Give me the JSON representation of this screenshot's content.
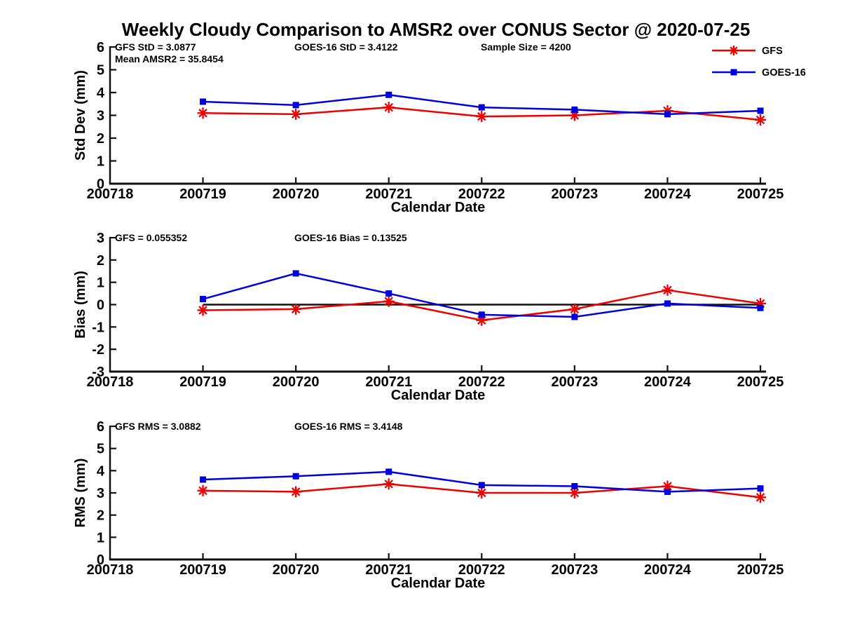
{
  "title": "Weekly Cloudy Comparison to AMSR2 over CONUS Sector @ 2020-07-25",
  "colors": {
    "gfs": "#ee0000",
    "goes": "#0000dd",
    "axis": "#111111",
    "zero_line": "#111111"
  },
  "legend": {
    "position": "top-right",
    "entries": [
      {
        "label": "GFS",
        "color_key": "gfs",
        "marker": "asterisk"
      },
      {
        "label": "GOES-16",
        "color_key": "goes",
        "marker": "square"
      }
    ]
  },
  "chart_data": [
    {
      "id": "stddev",
      "type": "line",
      "ylabel": "Std Dev (mm)",
      "xlabel": "Calendar Date",
      "ylim": [
        0,
        6
      ],
      "yticks": [
        0,
        1,
        2,
        3,
        4,
        5,
        6
      ],
      "grid": false,
      "categories": [
        "200718",
        "200719",
        "200720",
        "200721",
        "200722",
        "200723",
        "200724",
        "200725"
      ],
      "data_start_index": 1,
      "zero_line": false,
      "annotations": [
        {
          "text": "GFS StD = 3.0877",
          "slot": "left"
        },
        {
          "text": "Mean AMSR2 = 35.8454",
          "slot": "left2"
        },
        {
          "text": "GOES-16 StD = 3.4122",
          "slot": "mid"
        },
        {
          "text": "Sample Size = 4200",
          "slot": "right"
        }
      ],
      "series": [
        {
          "name": "GFS",
          "color_key": "gfs",
          "marker": "asterisk",
          "values": [
            3.1,
            3.05,
            3.35,
            2.95,
            3.0,
            3.2,
            2.8
          ]
        },
        {
          "name": "GOES-16",
          "color_key": "goes",
          "marker": "square",
          "values": [
            3.6,
            3.45,
            3.9,
            3.35,
            3.25,
            3.05,
            3.2
          ]
        }
      ]
    },
    {
      "id": "bias",
      "type": "line",
      "ylabel": "Bias (mm)",
      "xlabel": "Calendar Date",
      "ylim": [
        -3,
        3
      ],
      "yticks": [
        -3,
        -2,
        -1,
        0,
        1,
        2,
        3
      ],
      "grid": false,
      "categories": [
        "200718",
        "200719",
        "200720",
        "200721",
        "200722",
        "200723",
        "200724",
        "200725"
      ],
      "data_start_index": 1,
      "zero_line": true,
      "annotations": [
        {
          "text": "GFS = 0.055352",
          "slot": "left"
        },
        {
          "text": "GOES-16 Bias  = 0.13525",
          "slot": "mid"
        }
      ],
      "series": [
        {
          "name": "GFS",
          "color_key": "gfs",
          "marker": "asterisk",
          "values": [
            -0.25,
            -0.2,
            0.15,
            -0.7,
            -0.2,
            0.65,
            0.05
          ]
        },
        {
          "name": "GOES-16",
          "color_key": "goes",
          "marker": "square",
          "values": [
            0.25,
            1.4,
            0.5,
            -0.45,
            -0.55,
            0.05,
            -0.15
          ]
        }
      ]
    },
    {
      "id": "rms",
      "type": "line",
      "ylabel": "RMS (mm)",
      "xlabel": "Calendar Date",
      "ylim": [
        0,
        6
      ],
      "yticks": [
        0,
        1,
        2,
        3,
        4,
        5,
        6
      ],
      "grid": false,
      "categories": [
        "200718",
        "200719",
        "200720",
        "200721",
        "200722",
        "200723",
        "200724",
        "200725"
      ],
      "data_start_index": 1,
      "zero_line": false,
      "annotations": [
        {
          "text": "GFS RMS = 3.0882",
          "slot": "left"
        },
        {
          "text": "GOES-16 RMS = 3.4148",
          "slot": "mid"
        }
      ],
      "series": [
        {
          "name": "GFS",
          "color_key": "gfs",
          "marker": "asterisk",
          "values": [
            3.1,
            3.05,
            3.4,
            3.0,
            3.0,
            3.3,
            2.8
          ]
        },
        {
          "name": "GOES-16",
          "color_key": "goes",
          "marker": "square",
          "values": [
            3.6,
            3.75,
            3.95,
            3.35,
            3.3,
            3.05,
            3.2
          ]
        }
      ]
    }
  ]
}
